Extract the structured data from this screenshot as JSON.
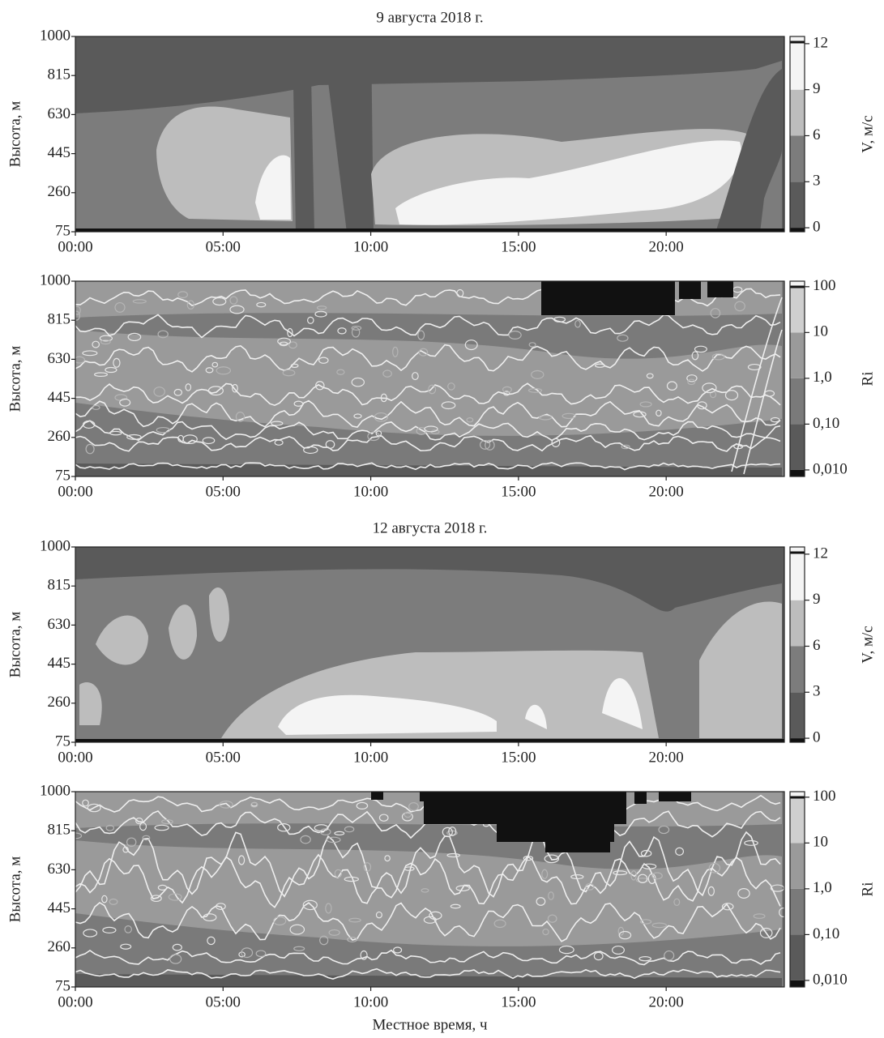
{
  "chart_data": [
    {
      "type": "contour",
      "title": "9 августа 2018 г.",
      "ylabel": "Высота, м",
      "xlim": [
        0,
        24
      ],
      "xticks": [
        {
          "value": 0,
          "label": "00:00"
        },
        {
          "value": 5,
          "label": "05:00"
        },
        {
          "value": 10,
          "label": "10:00"
        },
        {
          "value": 15,
          "label": "15:00"
        },
        {
          "value": 20,
          "label": "20:00"
        }
      ],
      "ylim": [
        75,
        1000
      ],
      "yticks": [
        75,
        260,
        445,
        630,
        815,
        1000
      ],
      "colorbar": {
        "label": "V, м/с",
        "scale": "linear",
        "lim": [
          -0.26,
          12.47
        ],
        "ticks": [
          0,
          3,
          6,
          9,
          12
        ],
        "colors": [
          "#111111",
          "#5a5a5a",
          "#7c7c7c",
          "#bdbdbd",
          "#f4f4f4",
          "#f4f4f4"
        ]
      }
    },
    {
      "type": "contour",
      "ylabel": "Высота, м",
      "xlim": [
        0,
        24
      ],
      "xticks": [
        {
          "value": 0,
          "label": "00:00"
        },
        {
          "value": 5,
          "label": "05:00"
        },
        {
          "value": 10,
          "label": "10:00"
        },
        {
          "value": 15,
          "label": "15:00"
        },
        {
          "value": 20,
          "label": "20:00"
        }
      ],
      "ylim": [
        75,
        1000
      ],
      "yticks": [
        75,
        260,
        445,
        630,
        815,
        1000
      ],
      "colorbar": {
        "label": "Ri",
        "scale": "log",
        "lim": [
          0.0072,
          132
        ],
        "ticks": [
          {
            "value": 0.01,
            "label": "0,010"
          },
          {
            "value": 0.1,
            "label": "0,10"
          },
          {
            "value": 1,
            "label": "1,0"
          },
          10,
          100
        ],
        "colors": [
          "#111111",
          "#5a5a5a",
          "#7a7a7a",
          "#9a9a9a",
          "#cfcfcf",
          "#f4f4f4"
        ]
      }
    },
    {
      "type": "contour",
      "title": "12 августа 2018 г.",
      "ylabel": "Высота, м",
      "xlim": [
        0,
        24
      ],
      "xticks": [
        {
          "value": 0,
          "label": "00:00"
        },
        {
          "value": 5,
          "label": "05:00"
        },
        {
          "value": 10,
          "label": "10:00"
        },
        {
          "value": 15,
          "label": "15:00"
        },
        {
          "value": 20,
          "label": "20:00"
        }
      ],
      "ylim": [
        75,
        1000
      ],
      "yticks": [
        75,
        260,
        445,
        630,
        815,
        1000
      ],
      "colorbar": {
        "label": "V, м/с",
        "scale": "linear",
        "lim": [
          -0.26,
          12.47
        ],
        "ticks": [
          0,
          3,
          6,
          9,
          12
        ],
        "colors": [
          "#111111",
          "#5a5a5a",
          "#7c7c7c",
          "#bdbdbd",
          "#f4f4f4",
          "#f4f4f4"
        ]
      }
    },
    {
      "type": "contour",
      "ylabel": "Высота, м",
      "xlabel": "Местное время, ч",
      "xlim": [
        0,
        24
      ],
      "xticks": [
        {
          "value": 0,
          "label": "00:00"
        },
        {
          "value": 5,
          "label": "05:00"
        },
        {
          "value": 10,
          "label": "10:00"
        },
        {
          "value": 15,
          "label": "15:00"
        },
        {
          "value": 20,
          "label": "20:00"
        }
      ],
      "ylim": [
        75,
        1000
      ],
      "yticks": [
        75,
        260,
        445,
        630,
        815,
        1000
      ],
      "colorbar": {
        "label": "Ri",
        "scale": "log",
        "lim": [
          0.0072,
          132
        ],
        "ticks": [
          {
            "value": 0.01,
            "label": "0,010"
          },
          {
            "value": 0.1,
            "label": "0,10"
          },
          {
            "value": 1,
            "label": "1,0"
          },
          10,
          100
        ],
        "colors": [
          "#111111",
          "#5a5a5a",
          "#7a7a7a",
          "#9a9a9a",
          "#cfcfcf",
          "#f4f4f4"
        ]
      }
    }
  ]
}
